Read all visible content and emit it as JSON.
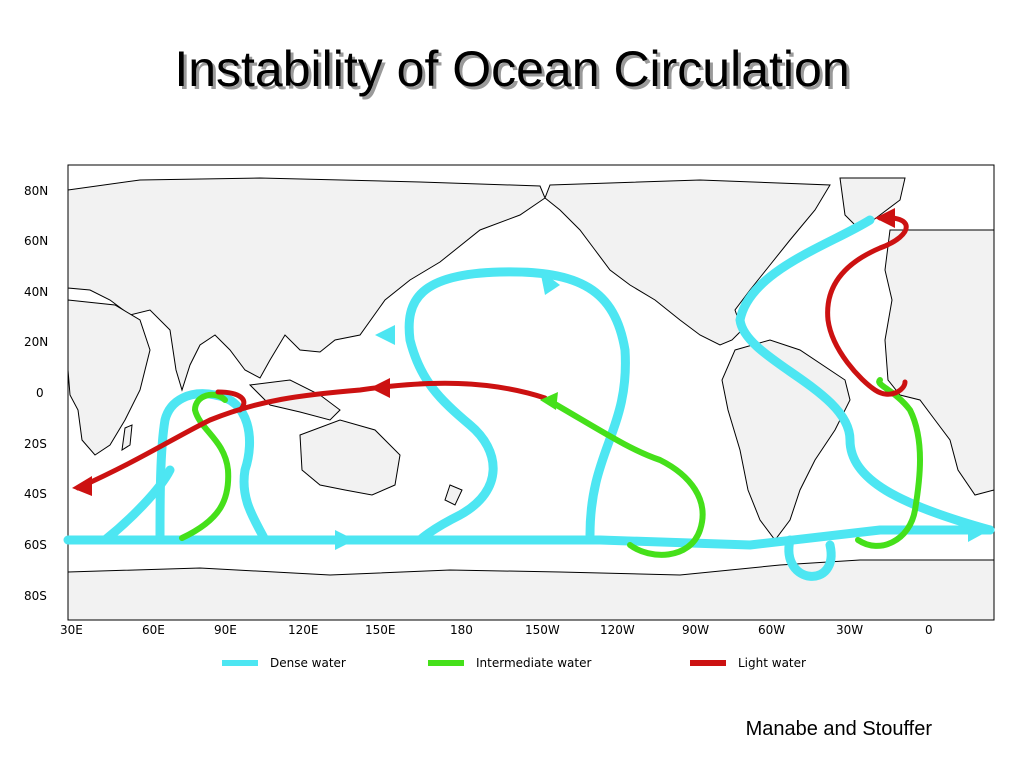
{
  "slide": {
    "title": "Instability of Ocean Circulation",
    "credit": "Manabe and Stouffer"
  },
  "map": {
    "lat_ticks": [
      "80N",
      "60N",
      "40N",
      "20N",
      "0",
      "20S",
      "40S",
      "60S",
      "80S"
    ],
    "lon_ticks": [
      "30E",
      "60E",
      "90E",
      "120E",
      "150E",
      "180",
      "150W",
      "120W",
      "90W",
      "60W",
      "30W",
      "0"
    ],
    "legend": [
      {
        "label": "Dense water",
        "color": "#4de6f2"
      },
      {
        "label": "Intermediate water",
        "color": "#45e01a"
      },
      {
        "label": "Light water",
        "color": "#cc1111"
      }
    ],
    "colors": {
      "dense": "#4de6f2",
      "intermediate": "#45e01a",
      "light": "#cc1111",
      "land": "#f2f2f2"
    }
  }
}
